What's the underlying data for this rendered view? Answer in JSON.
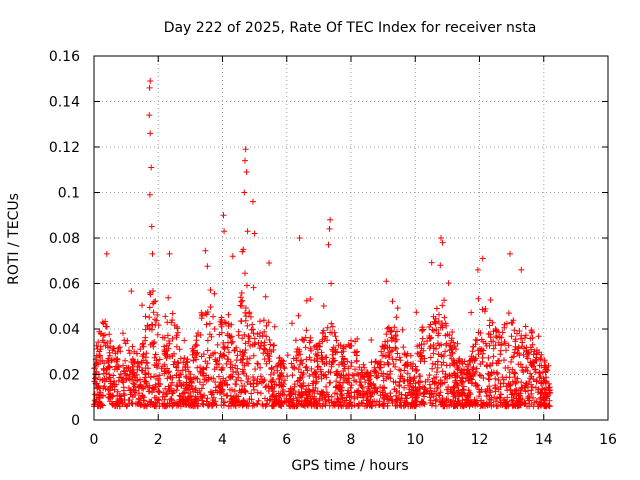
{
  "chart_data": {
    "type": "scatter",
    "title": "Day 222 of 2025, Rate Of TEC Index for receiver nsta",
    "xlabel": "GPS time / hours",
    "ylabel": "ROTI / TECUs",
    "xlim": [
      0,
      16
    ],
    "ylim": [
      0,
      0.16
    ],
    "grid": true,
    "marker": "+",
    "series_color": "#ff0000",
    "xticks": [
      0,
      2,
      4,
      6,
      8,
      10,
      12,
      14,
      16
    ],
    "xtick_labels": [
      "0",
      "2",
      "4",
      "6",
      "8",
      "10",
      "12",
      "14",
      "16"
    ],
    "yticks": [
      0,
      0.02,
      0.04,
      0.06,
      0.08,
      0.1,
      0.12,
      0.14,
      0.16
    ],
    "ytick_labels": [
      "0",
      "0.02",
      "0.04",
      "0.06",
      "0.08",
      "0.1",
      "0.12",
      "0.14",
      "0.16"
    ],
    "data_range_hours": [
      0,
      14.2
    ],
    "baseline_roti": 0.015,
    "notable_peaks": [
      {
        "x": 1.75,
        "y": 0.149
      },
      {
        "x": 1.73,
        "y": 0.146
      },
      {
        "x": 1.72,
        "y": 0.134
      },
      {
        "x": 1.75,
        "y": 0.126
      },
      {
        "x": 1.78,
        "y": 0.111
      },
      {
        "x": 1.74,
        "y": 0.099
      },
      {
        "x": 1.8,
        "y": 0.085
      },
      {
        "x": 1.82,
        "y": 0.073
      },
      {
        "x": 0.4,
        "y": 0.073
      },
      {
        "x": 2.35,
        "y": 0.073
      },
      {
        "x": 4.72,
        "y": 0.119
      },
      {
        "x": 4.7,
        "y": 0.114
      },
      {
        "x": 4.75,
        "y": 0.109
      },
      {
        "x": 4.68,
        "y": 0.1
      },
      {
        "x": 4.95,
        "y": 0.096
      },
      {
        "x": 4.03,
        "y": 0.09
      },
      {
        "x": 4.05,
        "y": 0.083
      },
      {
        "x": 4.78,
        "y": 0.083
      },
      {
        "x": 5.0,
        "y": 0.082
      },
      {
        "x": 4.32,
        "y": 0.072
      },
      {
        "x": 5.45,
        "y": 0.069
      },
      {
        "x": 6.4,
        "y": 0.08
      },
      {
        "x": 7.35,
        "y": 0.088
      },
      {
        "x": 7.33,
        "y": 0.084
      },
      {
        "x": 7.3,
        "y": 0.077
      },
      {
        "x": 7.38,
        "y": 0.06
      },
      {
        "x": 9.1,
        "y": 0.061
      },
      {
        "x": 10.8,
        "y": 0.08
      },
      {
        "x": 10.85,
        "y": 0.078
      },
      {
        "x": 10.78,
        "y": 0.068
      },
      {
        "x": 12.1,
        "y": 0.071
      },
      {
        "x": 12.95,
        "y": 0.073
      },
      {
        "x": 13.3,
        "y": 0.066
      },
      {
        "x": 11.95,
        "y": 0.066
      }
    ]
  }
}
